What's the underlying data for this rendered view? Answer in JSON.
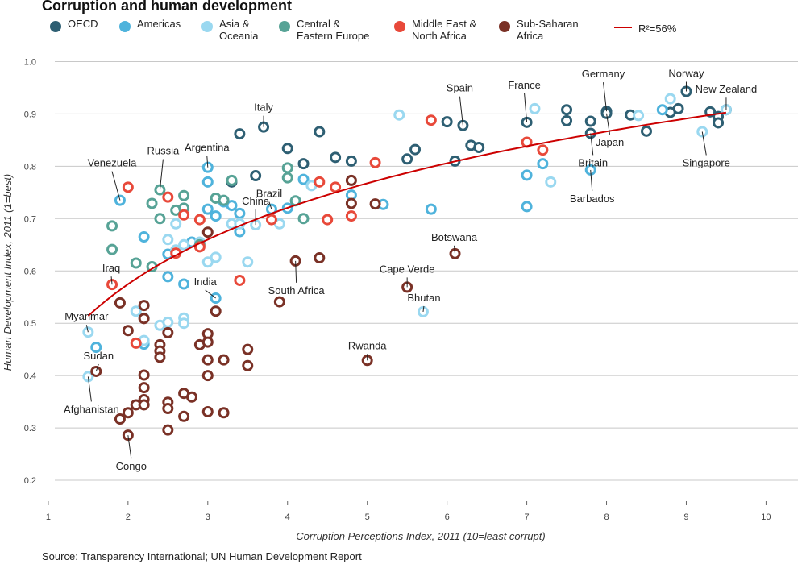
{
  "title": "Corruption and human development",
  "source": "Source: Transparency International; UN Human Development Report",
  "legend": [
    {
      "key": "OECD",
      "label": "OECD",
      "color": "#2e5f73"
    },
    {
      "key": "Americas",
      "label": "Americas",
      "color": "#4fb3dc"
    },
    {
      "key": "Asia",
      "label": "Asia &\nOceania",
      "color": "#9ad8f0"
    },
    {
      "key": "CEE",
      "label": "Central &\nEastern Europe",
      "color": "#57a396"
    },
    {
      "key": "MENA",
      "label": "Middle East &\nNorth Africa",
      "color": "#e8493a"
    },
    {
      "key": "SSA",
      "label": "Sub-Saharan\nAfrica",
      "color": "#7a3126"
    }
  ],
  "fit_label": "R²=56%",
  "fit_color": "#cc0000",
  "chart_data": {
    "type": "scatter",
    "title": "Corruption and human development",
    "xlabel": "Corruption Perceptions Index, 2011 (10=least corrupt)",
    "ylabel": "Human Development Index, 2011 (1=best)",
    "xlim": [
      0.9,
      10.4
    ],
    "ylim": [
      0.16,
      1.03
    ],
    "xticks": [
      1,
      2,
      3,
      4,
      5,
      6,
      7,
      8,
      9,
      10
    ],
    "yticks": [
      0.2,
      0.3,
      0.4,
      0.5,
      0.6,
      0.7,
      0.8,
      0.9,
      1.0
    ],
    "grid": "horizontal",
    "legend_position": "top",
    "fit": {
      "model": "log",
      "a": 0.4287,
      "b": 0.2105,
      "x_from": 1.5,
      "x_to": 9.5,
      "r2_label": "R²=56%"
    },
    "series": [
      {
        "name": "OECD",
        "color": "#2e5f73",
        "points": [
          [
            3.4,
            0.862
          ],
          [
            3.7,
            0.875
          ],
          [
            4.4,
            0.866
          ],
          [
            4.0,
            0.834
          ],
          [
            4.2,
            0.805
          ],
          [
            4.6,
            0.817
          ],
          [
            4.8,
            0.81
          ],
          [
            3.6,
            0.782
          ],
          [
            3.3,
            0.77
          ],
          [
            5.5,
            0.814
          ],
          [
            5.6,
            0.832
          ],
          [
            6.0,
            0.885
          ],
          [
            6.2,
            0.878
          ],
          [
            6.1,
            0.81
          ],
          [
            6.3,
            0.84
          ],
          [
            6.4,
            0.836
          ],
          [
            7.0,
            0.884
          ],
          [
            7.5,
            0.887
          ],
          [
            7.5,
            0.908
          ],
          [
            7.8,
            0.886
          ],
          [
            7.8,
            0.863
          ],
          [
            8.0,
            0.905
          ],
          [
            8.0,
            0.901
          ],
          [
            8.3,
            0.898
          ],
          [
            8.5,
            0.867
          ],
          [
            8.8,
            0.903
          ],
          [
            8.9,
            0.91
          ],
          [
            9.0,
            0.943
          ],
          [
            9.3,
            0.904
          ],
          [
            9.4,
            0.895
          ],
          [
            9.4,
            0.883
          ],
          [
            9.5,
            0.908
          ]
        ]
      },
      {
        "name": "Americas",
        "color": "#4fb3dc",
        "points": [
          [
            1.9,
            0.735
          ],
          [
            1.6,
            0.454
          ],
          [
            2.2,
            0.665
          ],
          [
            2.2,
            0.46
          ],
          [
            2.5,
            0.632
          ],
          [
            2.5,
            0.589
          ],
          [
            2.7,
            0.575
          ],
          [
            2.8,
            0.655
          ],
          [
            3.0,
            0.718
          ],
          [
            3.0,
            0.77
          ],
          [
            3.0,
            0.798
          ],
          [
            3.1,
            0.705
          ],
          [
            3.2,
            0.732
          ],
          [
            3.3,
            0.725
          ],
          [
            3.4,
            0.71
          ],
          [
            3.4,
            0.675
          ],
          [
            3.8,
            0.718
          ],
          [
            4.0,
            0.72
          ],
          [
            4.2,
            0.775
          ],
          [
            4.8,
            0.745
          ],
          [
            5.2,
            0.727
          ],
          [
            5.8,
            0.718
          ],
          [
            7.0,
            0.723
          ],
          [
            7.0,
            0.783
          ],
          [
            7.2,
            0.805
          ],
          [
            7.8,
            0.793
          ],
          [
            8.7,
            0.908
          ],
          [
            3.1,
            0.548
          ]
        ]
      },
      {
        "name": "Asia & Oceania",
        "color": "#9ad8f0",
        "points": [
          [
            1.5,
            0.483
          ],
          [
            1.5,
            0.398
          ],
          [
            2.1,
            0.523
          ],
          [
            2.2,
            0.51
          ],
          [
            2.2,
            0.467
          ],
          [
            2.4,
            0.496
          ],
          [
            2.5,
            0.502
          ],
          [
            2.5,
            0.66
          ],
          [
            2.6,
            0.69
          ],
          [
            2.6,
            0.64
          ],
          [
            2.7,
            0.65
          ],
          [
            2.7,
            0.51
          ],
          [
            2.7,
            0.5
          ],
          [
            2.9,
            0.655
          ],
          [
            3.0,
            0.617
          ],
          [
            3.1,
            0.626
          ],
          [
            3.3,
            0.69
          ],
          [
            3.4,
            0.69
          ],
          [
            3.5,
            0.617
          ],
          [
            3.6,
            0.688
          ],
          [
            3.9,
            0.69
          ],
          [
            4.3,
            0.763
          ],
          [
            5.4,
            0.898
          ],
          [
            5.7,
            0.522
          ],
          [
            7.1,
            0.91
          ],
          [
            7.3,
            0.77
          ],
          [
            8.4,
            0.897
          ],
          [
            8.8,
            0.929
          ],
          [
            9.2,
            0.866
          ],
          [
            9.5,
            0.908
          ]
        ]
      },
      {
        "name": "Central & Eastern Europe",
        "color": "#57a396",
        "points": [
          [
            1.8,
            0.686
          ],
          [
            1.8,
            0.641
          ],
          [
            2.1,
            0.615
          ],
          [
            2.3,
            0.729
          ],
          [
            2.3,
            0.608
          ],
          [
            2.4,
            0.755
          ],
          [
            2.4,
            0.7
          ],
          [
            2.6,
            0.716
          ],
          [
            2.7,
            0.72
          ],
          [
            2.7,
            0.744
          ],
          [
            2.9,
            0.65
          ],
          [
            3.1,
            0.739
          ],
          [
            3.2,
            0.735
          ],
          [
            3.3,
            0.773
          ],
          [
            4.0,
            0.797
          ],
          [
            4.0,
            0.778
          ],
          [
            4.1,
            0.734
          ],
          [
            4.2,
            0.7
          ]
        ]
      },
      {
        "name": "Middle East & North Africa",
        "color": "#e8493a",
        "points": [
          [
            1.8,
            0.574
          ],
          [
            2.0,
            0.76
          ],
          [
            2.1,
            0.462
          ],
          [
            2.5,
            0.741
          ],
          [
            2.6,
            0.634
          ],
          [
            2.7,
            0.707
          ],
          [
            2.9,
            0.698
          ],
          [
            2.9,
            0.646
          ],
          [
            3.4,
            0.582
          ],
          [
            3.8,
            0.698
          ],
          [
            4.4,
            0.77
          ],
          [
            4.5,
            0.698
          ],
          [
            4.6,
            0.76
          ],
          [
            4.8,
            0.705
          ],
          [
            5.1,
            0.807
          ],
          [
            5.8,
            0.888
          ],
          [
            7.0,
            0.846
          ],
          [
            7.2,
            0.831
          ]
        ]
      },
      {
        "name": "Sub-Saharan Africa",
        "color": "#7a3126",
        "points": [
          [
            1.6,
            0.408
          ],
          [
            1.9,
            0.539
          ],
          [
            1.9,
            0.317
          ],
          [
            2.0,
            0.286
          ],
          [
            2.0,
            0.329
          ],
          [
            2.0,
            0.486
          ],
          [
            2.1,
            0.344
          ],
          [
            2.2,
            0.534
          ],
          [
            2.2,
            0.509
          ],
          [
            2.2,
            0.401
          ],
          [
            2.2,
            0.377
          ],
          [
            2.2,
            0.354
          ],
          [
            2.2,
            0.344
          ],
          [
            2.4,
            0.459
          ],
          [
            2.4,
            0.447
          ],
          [
            2.4,
            0.435
          ],
          [
            2.5,
            0.482
          ],
          [
            2.5,
            0.349
          ],
          [
            2.5,
            0.337
          ],
          [
            2.5,
            0.296
          ],
          [
            2.7,
            0.366
          ],
          [
            2.7,
            0.322
          ],
          [
            2.8,
            0.359
          ],
          [
            2.9,
            0.459
          ],
          [
            3.0,
            0.48
          ],
          [
            3.0,
            0.464
          ],
          [
            3.0,
            0.43
          ],
          [
            3.0,
            0.4
          ],
          [
            3.0,
            0.331
          ],
          [
            3.0,
            0.674
          ],
          [
            3.1,
            0.523
          ],
          [
            3.2,
            0.43
          ],
          [
            3.2,
            0.329
          ],
          [
            3.5,
            0.45
          ],
          [
            3.5,
            0.419
          ],
          [
            3.9,
            0.541
          ],
          [
            4.1,
            0.619
          ],
          [
            4.4,
            0.625
          ],
          [
            4.8,
            0.773
          ],
          [
            4.8,
            0.729
          ],
          [
            5.0,
            0.429
          ],
          [
            5.1,
            0.728
          ],
          [
            5.5,
            0.569
          ],
          [
            6.1,
            0.633
          ]
        ]
      }
    ],
    "annotations": [
      {
        "label": "Venezuela",
        "x": 1.9,
        "y": 0.735,
        "dx": -10,
        "dy": -42,
        "anchor": "middle"
      },
      {
        "label": "Russia",
        "x": 2.4,
        "y": 0.755,
        "dx": 4,
        "dy": -44,
        "anchor": "middle"
      },
      {
        "label": "Argentina",
        "x": 3.0,
        "y": 0.798,
        "dx": -1,
        "dy": -20,
        "anchor": "middle"
      },
      {
        "label": "Italy",
        "x": 3.7,
        "y": 0.875,
        "dx": 0,
        "dy": -20,
        "anchor": "middle"
      },
      {
        "label": "Spain",
        "x": 6.2,
        "y": 0.878,
        "dx": -4,
        "dy": -42,
        "anchor": "middle"
      },
      {
        "label": "France",
        "x": 7.0,
        "y": 0.884,
        "dx": -3,
        "dy": -42,
        "anchor": "middle"
      },
      {
        "label": "Germany",
        "x": 8.0,
        "y": 0.905,
        "dx": -4,
        "dy": -42,
        "anchor": "middle"
      },
      {
        "label": "Norway",
        "x": 9.0,
        "y": 0.943,
        "dx": 0,
        "dy": -18,
        "anchor": "middle"
      },
      {
        "label": "New Zealand",
        "x": 9.5,
        "y": 0.908,
        "dx": 0,
        "dy": -21,
        "anchor": "middle"
      },
      {
        "label": "Japan",
        "x": 8.0,
        "y": 0.901,
        "dx": 4,
        "dy": 30,
        "anchor": "middle"
      },
      {
        "label": "Britain",
        "x": 7.8,
        "y": 0.863,
        "dx": 3,
        "dy": 31,
        "anchor": "middle"
      },
      {
        "label": "Singapore",
        "x": 9.2,
        "y": 0.866,
        "dx": 5,
        "dy": 33,
        "anchor": "middle"
      },
      {
        "label": "Barbados",
        "x": 7.8,
        "y": 0.793,
        "dx": 2,
        "dy": 30,
        "anchor": "middle"
      },
      {
        "label": "China",
        "x": 3.6,
        "y": 0.688,
        "dx": 0,
        "dy": -25,
        "anchor": "middle"
      },
      {
        "label": "Brazil",
        "x": 3.8,
        "y": 0.718,
        "dx": -3,
        "dy": -15,
        "anchor": "middle"
      },
      {
        "label": "Botswana",
        "x": 6.1,
        "y": 0.633,
        "dx": -1,
        "dy": -16,
        "anchor": "middle"
      },
      {
        "label": "Cape Verde",
        "x": 5.5,
        "y": 0.569,
        "dx": 0,
        "dy": -18,
        "anchor": "middle"
      },
      {
        "label": "Bhutan",
        "x": 5.7,
        "y": 0.522,
        "dx": 1,
        "dy": -13,
        "anchor": "middle"
      },
      {
        "label": "South Africa",
        "x": 4.1,
        "y": 0.619,
        "dx": 1,
        "dy": 31,
        "anchor": "middle"
      },
      {
        "label": "India",
        "x": 3.1,
        "y": 0.548,
        "dx": -13,
        "dy": -16,
        "anchor": "middle"
      },
      {
        "label": "Iraq",
        "x": 1.8,
        "y": 0.574,
        "dx": -1,
        "dy": -16,
        "anchor": "middle"
      },
      {
        "label": "Myanmar",
        "x": 1.5,
        "y": 0.483,
        "dx": -2,
        "dy": -15,
        "anchor": "middle"
      },
      {
        "label": "Sudan",
        "x": 1.6,
        "y": 0.408,
        "dx": 3,
        "dy": -15,
        "anchor": "middle"
      },
      {
        "label": "Afghanistan",
        "x": 1.5,
        "y": 0.398,
        "dx": 4,
        "dy": 35,
        "anchor": "middle"
      },
      {
        "label": "Rwanda",
        "x": 5.0,
        "y": 0.429,
        "dx": 0,
        "dy": -14,
        "anchor": "middle"
      },
      {
        "label": "Congo",
        "x": 2.0,
        "y": 0.286,
        "dx": 4,
        "dy": 33,
        "anchor": "middle"
      }
    ]
  }
}
